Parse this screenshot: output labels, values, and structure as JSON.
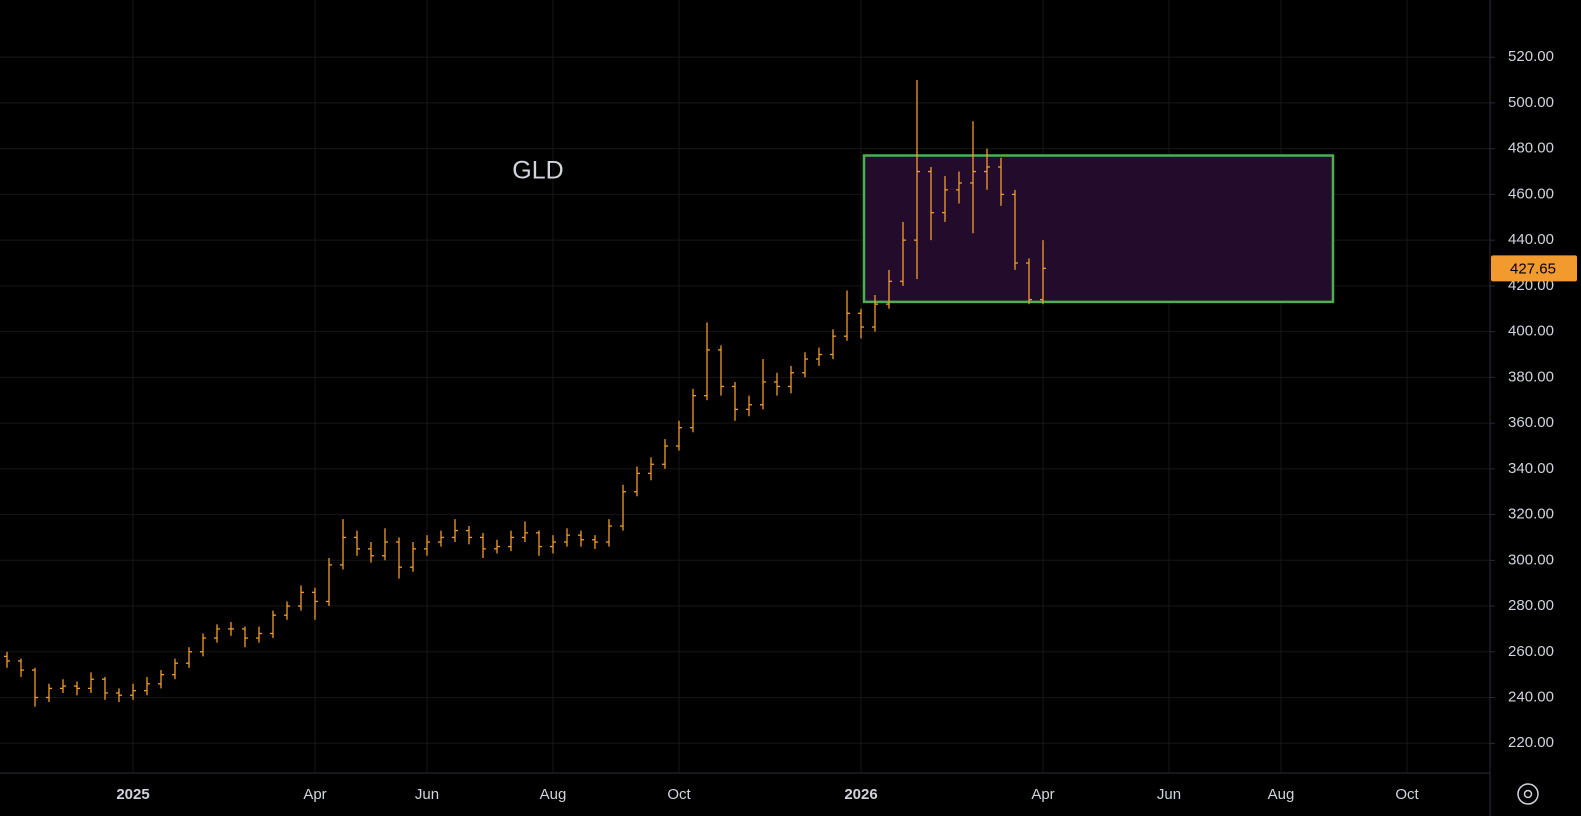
{
  "chart_data": {
    "type": "ohlc",
    "title": "GLD",
    "color": "#f29a2e",
    "categories": [
      null,
      null,
      null,
      null,
      null,
      null,
      null,
      null,
      null,
      "2025",
      null,
      null,
      null,
      null,
      null,
      null,
      null,
      null,
      null,
      null,
      null,
      null,
      "Apr",
      null,
      null,
      null,
      null,
      null,
      null,
      null,
      "Jun",
      null,
      null,
      null,
      null,
      null,
      null,
      null,
      null,
      "Aug",
      null,
      null,
      null,
      null,
      null,
      null,
      null,
      null,
      "Oct",
      null,
      null,
      null,
      null,
      null,
      null,
      null,
      null,
      null,
      null,
      null,
      null,
      "2026",
      null,
      null,
      null,
      null,
      null,
      null,
      null,
      null,
      null,
      null,
      null,
      null,
      "Apr",
      null,
      null,
      null,
      null,
      null,
      null,
      null,
      null,
      "Jun",
      null,
      null,
      null,
      null,
      null,
      null,
      null,
      "Aug",
      null,
      null,
      null,
      null,
      null,
      null,
      null,
      null,
      "Oct",
      null,
      null,
      null,
      null,
      null
    ],
    "open": [
      258,
      256,
      252,
      240,
      244,
      245,
      244,
      248,
      242,
      241,
      243,
      246,
      250,
      255,
      260,
      266,
      270,
      270,
      266,
      268,
      276,
      280,
      286,
      282,
      298,
      310,
      305,
      302,
      308,
      297,
      305,
      308,
      310,
      313,
      310,
      305,
      306,
      310,
      312,
      306,
      308,
      311,
      309,
      308,
      315,
      330,
      338,
      342,
      350,
      358,
      372,
      392,
      376,
      366,
      368,
      378,
      376,
      382,
      388,
      390,
      398,
      408,
      402,
      412,
      422,
      440,
      470,
      452,
      462,
      465,
      470,
      472,
      460,
      430,
      414,
      null,
      null,
      null,
      null,
      null,
      null,
      null,
      null,
      null,
      null,
      null,
      null,
      null,
      null,
      null,
      null,
      null,
      null,
      null,
      null,
      null,
      null,
      null,
      null,
      null,
      null,
      null,
      null,
      null,
      null,
      null
    ],
    "high": [
      260,
      257,
      253,
      246,
      248,
      247,
      251,
      249,
      244,
      246,
      249,
      252,
      257,
      262,
      268,
      272,
      273,
      271,
      271,
      278,
      282,
      289,
      288,
      301,
      318,
      313,
      308,
      314,
      310,
      308,
      311,
      313,
      318,
      315,
      312,
      309,
      313,
      317,
      313,
      311,
      314,
      313,
      311,
      318,
      333,
      341,
      345,
      353,
      361,
      375,
      404,
      394,
      378,
      372,
      388,
      382,
      385,
      391,
      393,
      401,
      418,
      410,
      416,
      427,
      448,
      510,
      472,
      468,
      470,
      492,
      480,
      476,
      462,
      432,
      440,
      null,
      null,
      null,
      null,
      null,
      null,
      null,
      null,
      null,
      null,
      null,
      null,
      null,
      null,
      null,
      null,
      null,
      null,
      null,
      null,
      null,
      null,
      null,
      null,
      null,
      null,
      null,
      null,
      null,
      null,
      null
    ],
    "low": [
      253,
      249,
      236,
      238,
      242,
      241,
      242,
      239,
      238,
      239,
      241,
      244,
      248,
      253,
      258,
      264,
      267,
      262,
      264,
      266,
      274,
      278,
      274,
      280,
      296,
      302,
      299,
      300,
      292,
      295,
      302,
      306,
      308,
      307,
      301,
      303,
      304,
      308,
      302,
      303,
      306,
      306,
      305,
      306,
      313,
      328,
      335,
      340,
      348,
      356,
      370,
      372,
      361,
      363,
      366,
      372,
      373,
      380,
      385,
      388,
      396,
      397,
      400,
      410,
      420,
      423,
      440,
      448,
      456,
      443,
      462,
      455,
      427,
      412,
      412,
      null,
      null,
      null,
      null,
      null,
      null,
      null,
      null,
      null,
      null,
      null,
      null,
      null,
      null,
      null,
      null,
      null,
      null,
      null,
      null,
      null,
      null,
      null,
      null,
      null,
      null,
      null,
      null,
      null,
      null,
      null
    ],
    "close": [
      256,
      252,
      240,
      244,
      245,
      244,
      248,
      242,
      241,
      243,
      246,
      250,
      255,
      260,
      266,
      270,
      270,
      266,
      268,
      276,
      280,
      286,
      282,
      298,
      310,
      305,
      302,
      308,
      297,
      305,
      308,
      310,
      313,
      310,
      305,
      306,
      310,
      312,
      306,
      308,
      311,
      309,
      308,
      315,
      330,
      338,
      342,
      350,
      358,
      372,
      392,
      376,
      366,
      368,
      378,
      376,
      382,
      388,
      390,
      398,
      408,
      402,
      412,
      422,
      440,
      470,
      452,
      462,
      465,
      470,
      472,
      460,
      430,
      414,
      427.65,
      null,
      null,
      null,
      null,
      null,
      null,
      null,
      null,
      null,
      null,
      null,
      null,
      null,
      null,
      null,
      null,
      null,
      null,
      null,
      null,
      null,
      null,
      null,
      null,
      null,
      null,
      null,
      null,
      null,
      null,
      null
    ],
    "last_price": 427.65,
    "box": {
      "low": 413,
      "high": 477,
      "fill": "#230b2b",
      "stroke": "#4caf50"
    },
    "ylim": [
      207,
      545
    ],
    "yticks": [
      {
        "value": 220,
        "label": "220.00"
      },
      {
        "value": 240,
        "label": "240.00"
      },
      {
        "value": 260,
        "label": "260.00"
      },
      {
        "value": 280,
        "label": "280.00"
      },
      {
        "value": 300,
        "label": "300.00"
      },
      {
        "value": 320,
        "label": "320.00"
      },
      {
        "value": 340,
        "label": "340.00"
      },
      {
        "value": 360,
        "label": "360.00"
      },
      {
        "value": 380,
        "label": "380.00"
      },
      {
        "value": 400,
        "label": "400.00"
      },
      {
        "value": 420,
        "label": "420.00"
      },
      {
        "value": 440,
        "label": "440.00"
      },
      {
        "value": 460,
        "label": "460.00"
      },
      {
        "value": 480,
        "label": "480.00"
      },
      {
        "value": 500,
        "label": "500.00"
      },
      {
        "value": 520,
        "label": "520.00"
      }
    ],
    "grid": true
  }
}
